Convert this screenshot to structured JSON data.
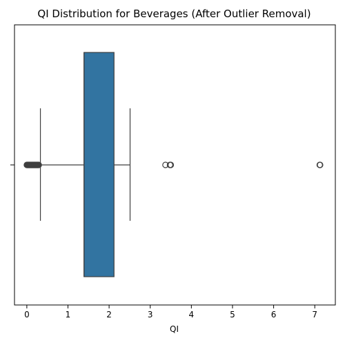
{
  "chart_data": {
    "type": "boxplot",
    "title": "QI Distribution for Beverages (After Outlier Removal)",
    "xlabel": "QI",
    "ylabel": "",
    "xlim": [
      -0.3,
      7.5
    ],
    "xticks": [
      0,
      1,
      2,
      3,
      4,
      5,
      6,
      7
    ],
    "xtick_labels": [
      "0",
      "1",
      "2",
      "3",
      "4",
      "5",
      "6",
      "7"
    ],
    "orientation": "horizontal",
    "grid": false,
    "legend": "none",
    "box": {
      "whisker_low": 0.33,
      "q1": 1.39,
      "median": 1.39,
      "q3": 2.12,
      "whisker_high": 2.51
    },
    "outliers": [
      0.0,
      0.01,
      0.02,
      0.03,
      0.04,
      0.05,
      0.06,
      0.07,
      0.08,
      0.09,
      0.1,
      0.11,
      0.12,
      0.13,
      0.14,
      0.15,
      0.16,
      0.17,
      0.18,
      0.19,
      0.2,
      0.21,
      0.22,
      0.23,
      0.24,
      0.25,
      0.26,
      0.27,
      0.28,
      0.29,
      3.37,
      3.48,
      3.5,
      7.12,
      7.13
    ],
    "colors": {
      "box_fill": "#3274a1",
      "line": "#3f3f3f"
    }
  }
}
